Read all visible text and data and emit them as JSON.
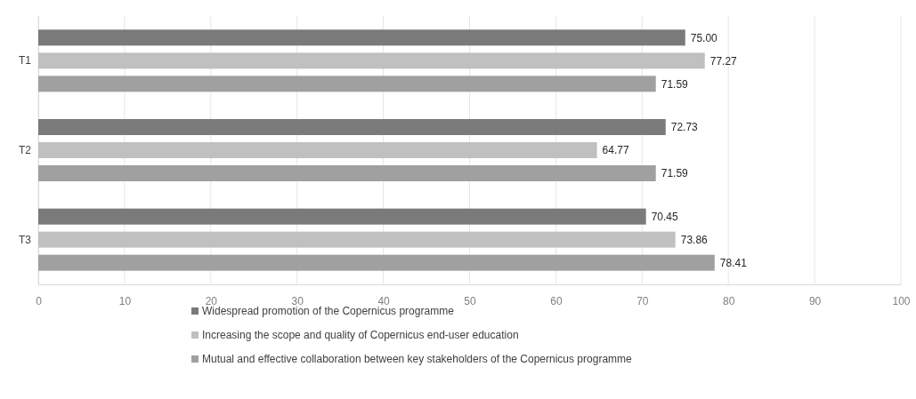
{
  "chart_data": {
    "type": "bar",
    "orientation": "horizontal",
    "categories": [
      "T1",
      "T2",
      "T3"
    ],
    "series": [
      {
        "name": "Widespread promotion of the Copernicus programme",
        "color": "#7a7a7a",
        "values": [
          75.0,
          72.73,
          70.45
        ]
      },
      {
        "name": "Increasing the scope and quality of Copernicus end-user education",
        "color": "#c0c0c0",
        "values": [
          77.27,
          64.77,
          73.86
        ]
      },
      {
        "name": "Mutual and effective collaboration between key stakeholders of the Copernicus programme",
        "color": "#a0a0a0",
        "values": [
          71.59,
          71.59,
          78.41
        ]
      }
    ],
    "value_labels": [
      [
        "75.00",
        "72.73",
        "70.45"
      ],
      [
        "77.27",
        "64.77",
        "73.86"
      ],
      [
        "71.59",
        "71.59",
        "78.41"
      ]
    ],
    "xlim": [
      0,
      100
    ],
    "xticks": [
      0,
      10,
      20,
      30,
      40,
      50,
      60,
      70,
      80,
      90,
      100
    ],
    "grid": "x",
    "legend": "bottom"
  }
}
